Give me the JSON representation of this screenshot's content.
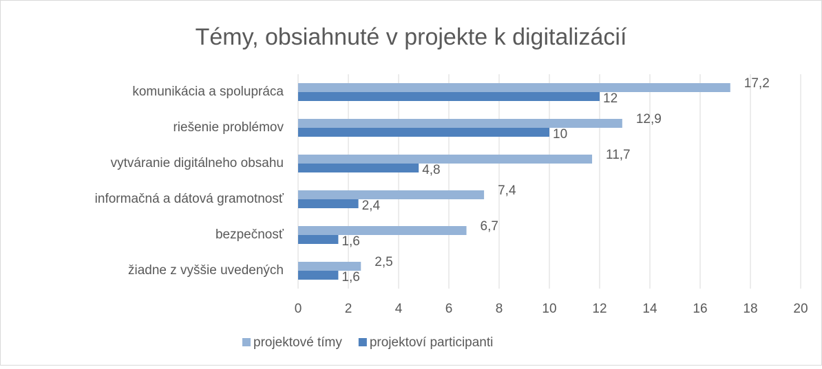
{
  "chart_data": {
    "type": "hbar",
    "title": "Témy, obsiahnuté v projekte k digitalizácií",
    "categories": [
      "komunikácia a spolupráca",
      "riešenie problémov",
      "vytváranie digitálneho obsahu",
      "informačná a dátová gramotnosť",
      "bezpečnosť",
      "žiadne z vyššie uvedených"
    ],
    "series": [
      {
        "name": "projektové tímy",
        "color": "#95b3d7",
        "values": [
          17.2,
          12.9,
          11.7,
          7.4,
          6.7,
          2.5
        ],
        "value_labels": [
          "17,2",
          "12,9",
          "11,7",
          "7,4",
          "6,7",
          "2,5"
        ]
      },
      {
        "name": "projektoví participanti",
        "color": "#4f81bd",
        "values": [
          12,
          10,
          4.8,
          2.4,
          1.6,
          1.6
        ],
        "value_labels": [
          "12",
          "10",
          "4,8",
          "2,4",
          "1,6",
          "1,6"
        ]
      }
    ],
    "xlim": [
      0,
      20
    ],
    "xticks": [
      0,
      2,
      4,
      6,
      8,
      10,
      12,
      14,
      16,
      18,
      20
    ],
    "grid": true,
    "legend": "bottom"
  }
}
